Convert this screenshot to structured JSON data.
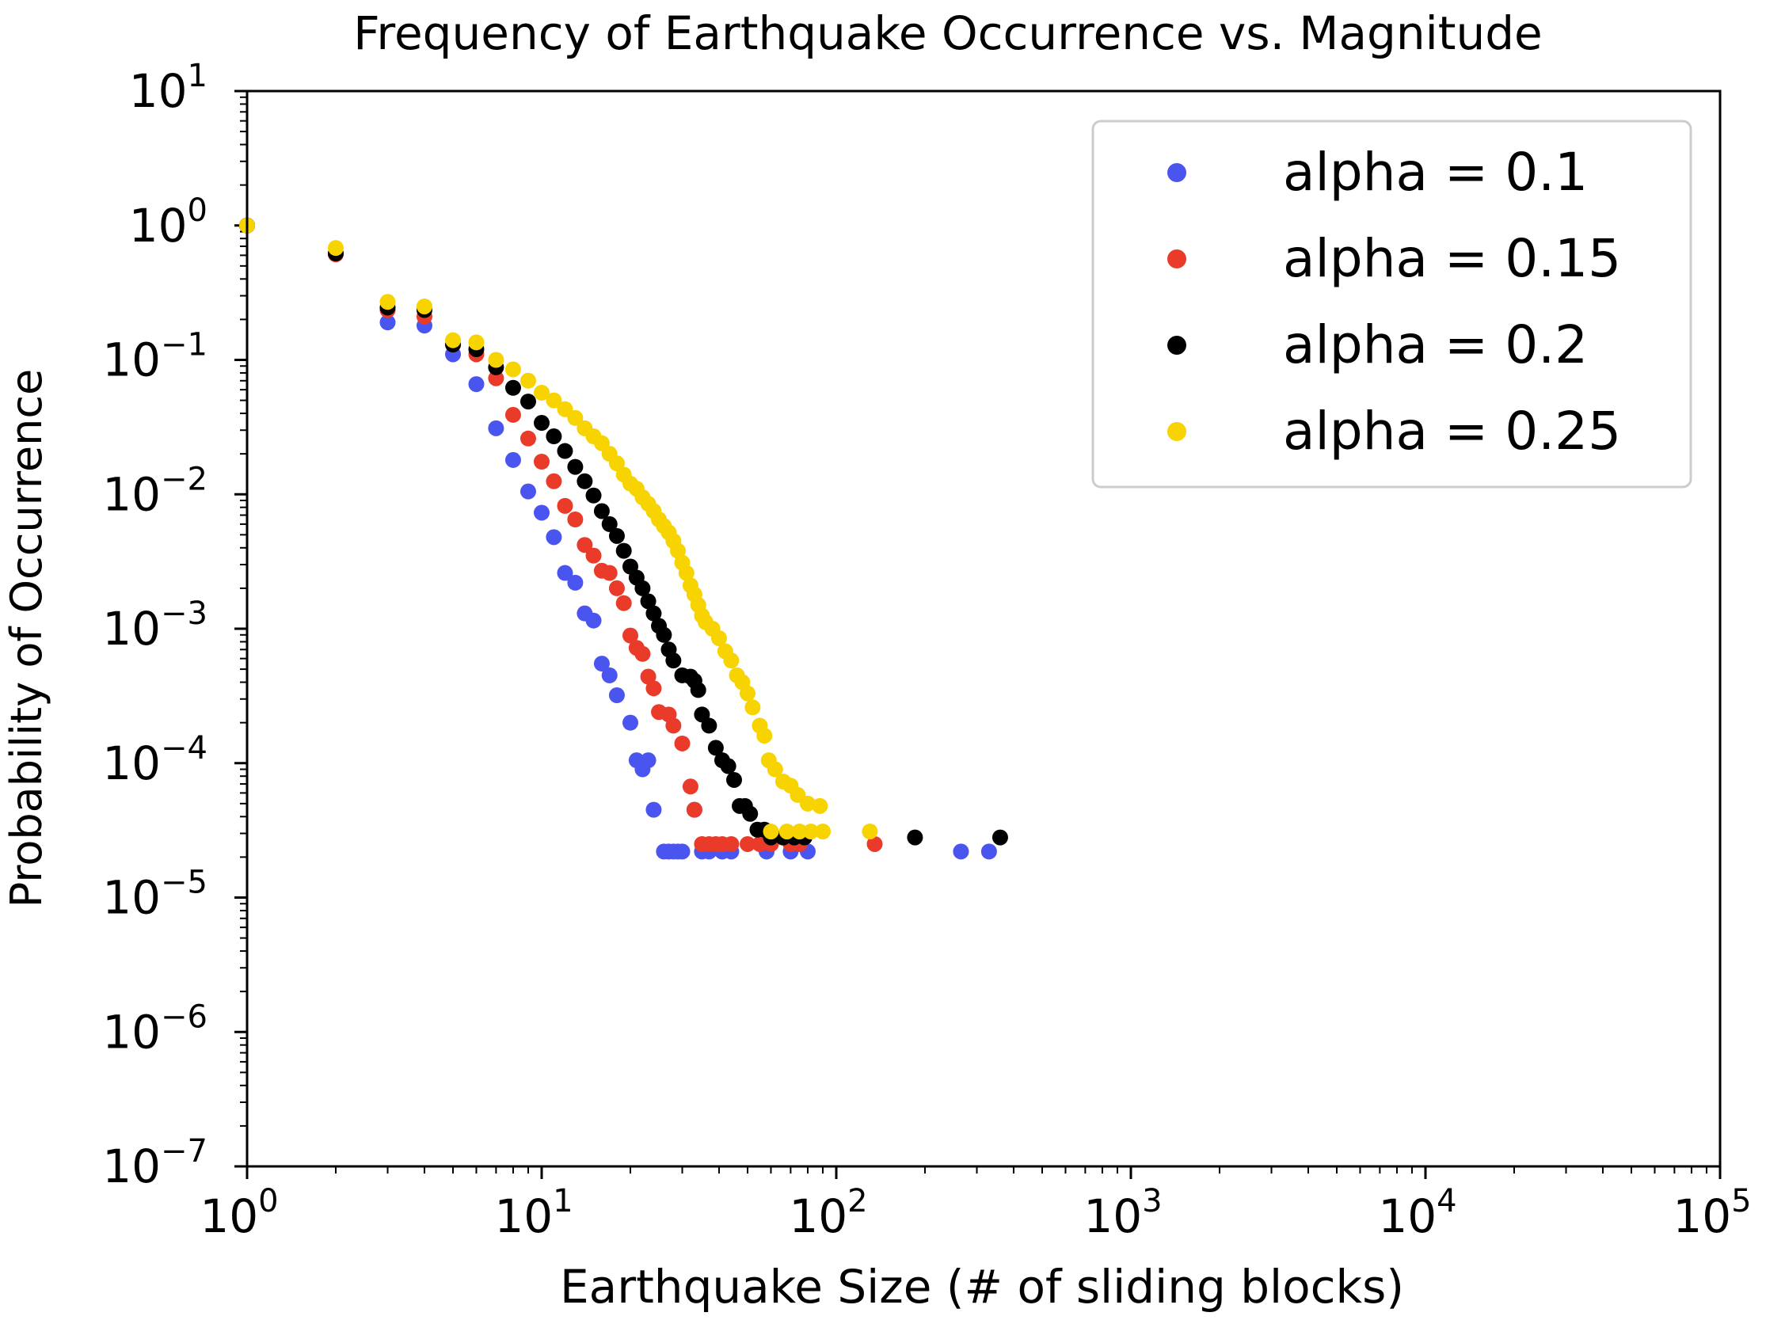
{
  "chart_data": {
    "type": "scatter",
    "title": "Frequency of Earthquake Occurrence vs. Magnitude",
    "xlabel": "Earthquake Size (# of sliding blocks)",
    "ylabel": "Probability of Occurrence",
    "xscale": "log",
    "yscale": "log",
    "xlim": [
      1,
      100000
    ],
    "ylim": [
      1e-07,
      10
    ],
    "grid": false,
    "legend_position": "top-right",
    "x_ticks": [
      {
        "value": 1,
        "base": "10",
        "exp": "0"
      },
      {
        "value": 10,
        "base": "10",
        "exp": "1"
      },
      {
        "value": 100,
        "base": "10",
        "exp": "2"
      },
      {
        "value": 1000,
        "base": "10",
        "exp": "3"
      },
      {
        "value": 10000,
        "base": "10",
        "exp": "4"
      },
      {
        "value": 100000,
        "base": "10",
        "exp": "5"
      }
    ],
    "y_ticks": [
      {
        "value": 10,
        "base": "10",
        "exp": "1"
      },
      {
        "value": 1,
        "base": "10",
        "exp": "0"
      },
      {
        "value": 0.1,
        "base": "10",
        "exp": "−1"
      },
      {
        "value": 0.01,
        "base": "10",
        "exp": "−2"
      },
      {
        "value": 0.001,
        "base": "10",
        "exp": "−3"
      },
      {
        "value": 0.0001,
        "base": "10",
        "exp": "−4"
      },
      {
        "value": 1e-05,
        "base": "10",
        "exp": "−5"
      },
      {
        "value": 1e-06,
        "base": "10",
        "exp": "−6"
      },
      {
        "value": 1e-07,
        "base": "10",
        "exp": "−7"
      }
    ],
    "series": [
      {
        "name": "alpha = 0.1",
        "color": "#4a55f0",
        "points": [
          [
            1,
            1.0
          ],
          [
            2,
            0.62
          ],
          [
            3,
            0.19
          ],
          [
            4,
            0.18
          ],
          [
            5,
            0.11
          ],
          [
            6,
            0.066
          ],
          [
            7,
            0.031
          ],
          [
            8,
            0.018
          ],
          [
            9,
            0.0105
          ],
          [
            10,
            0.0073
          ],
          [
            11,
            0.0048
          ],
          [
            12,
            0.0026
          ],
          [
            13,
            0.0022
          ],
          [
            14,
            0.0013
          ],
          [
            15,
            0.00115
          ],
          [
            16,
            0.00055
          ],
          [
            17,
            0.00045
          ],
          [
            18,
            0.00032
          ],
          [
            20,
            0.0002
          ],
          [
            21,
            0.000105
          ],
          [
            22,
            9e-05
          ],
          [
            23,
            0.000105
          ],
          [
            24,
            4.5e-05
          ],
          [
            26,
            2.2e-05
          ],
          [
            27,
            2.2e-05
          ],
          [
            28,
            2.2e-05
          ],
          [
            29,
            2.2e-05
          ],
          [
            30,
            2.2e-05
          ],
          [
            33,
            4.5e-05
          ],
          [
            35,
            2.2e-05
          ],
          [
            37,
            2.2e-05
          ],
          [
            41,
            2.2e-05
          ],
          [
            44,
            2.2e-05
          ],
          [
            58,
            2.2e-05
          ],
          [
            70,
            2.2e-05
          ],
          [
            80,
            2.2e-05
          ],
          [
            265,
            2.2e-05
          ],
          [
            330,
            2.2e-05
          ]
        ]
      },
      {
        "name": "alpha = 0.15",
        "color": "#ea3a2a",
        "points": [
          [
            1,
            1.0
          ],
          [
            2,
            0.61
          ],
          [
            3,
            0.235
          ],
          [
            4,
            0.21
          ],
          [
            5,
            0.13
          ],
          [
            6,
            0.11
          ],
          [
            7,
            0.073
          ],
          [
            8,
            0.039
          ],
          [
            9,
            0.026
          ],
          [
            10,
            0.0175
          ],
          [
            11,
            0.0125
          ],
          [
            12,
            0.0082
          ],
          [
            13,
            0.0065
          ],
          [
            14,
            0.0042
          ],
          [
            15,
            0.0035
          ],
          [
            16,
            0.0027
          ],
          [
            17,
            0.0026
          ],
          [
            18,
            0.002
          ],
          [
            19,
            0.00155
          ],
          [
            20,
            0.00089
          ],
          [
            21,
            0.00072
          ],
          [
            22,
            0.00065
          ],
          [
            23,
            0.00044
          ],
          [
            24,
            0.00036
          ],
          [
            25,
            0.00024
          ],
          [
            27,
            0.00023
          ],
          [
            28,
            0.00019
          ],
          [
            30,
            0.00014
          ],
          [
            32,
            6.7e-05
          ],
          [
            33,
            4.5e-05
          ],
          [
            35,
            2.5e-05
          ],
          [
            37,
            2.5e-05
          ],
          [
            39,
            2.5e-05
          ],
          [
            41,
            2.5e-05
          ],
          [
            44,
            2.5e-05
          ],
          [
            50,
            2.5e-05
          ],
          [
            55,
            2.5e-05
          ],
          [
            60,
            2.5e-05
          ],
          [
            70,
            2.5e-05
          ],
          [
            75,
            2.5e-05
          ],
          [
            135,
            2.5e-05
          ]
        ]
      },
      {
        "name": "alpha = 0.2",
        "color": "#000000",
        "points": [
          [
            1,
            1.0
          ],
          [
            2,
            0.62
          ],
          [
            3,
            0.245
          ],
          [
            4,
            0.235
          ],
          [
            5,
            0.13
          ],
          [
            6,
            0.12
          ],
          [
            7,
            0.088
          ],
          [
            8,
            0.062
          ],
          [
            9,
            0.049
          ],
          [
            10,
            0.034
          ],
          [
            11,
            0.027
          ],
          [
            12,
            0.021
          ],
          [
            13,
            0.016
          ],
          [
            14,
            0.0125
          ],
          [
            15,
            0.0098
          ],
          [
            16,
            0.0075
          ],
          [
            17,
            0.006
          ],
          [
            18,
            0.0049
          ],
          [
            19,
            0.0038
          ],
          [
            20,
            0.0029
          ],
          [
            21,
            0.0024
          ],
          [
            22,
            0.002
          ],
          [
            23,
            0.0016
          ],
          [
            24,
            0.0013
          ],
          [
            25,
            0.00105
          ],
          [
            26,
            0.0009
          ],
          [
            27,
            0.0007
          ],
          [
            28,
            0.00058
          ],
          [
            30,
            0.00045
          ],
          [
            32,
            0.00044
          ],
          [
            33,
            0.00041
          ],
          [
            34,
            0.00035
          ],
          [
            35,
            0.00023
          ],
          [
            37,
            0.00019
          ],
          [
            39,
            0.00013
          ],
          [
            41,
            0.000105
          ],
          [
            43,
            9.5e-05
          ],
          [
            45,
            7.5e-05
          ],
          [
            47,
            4.8e-05
          ],
          [
            49,
            4.8e-05
          ],
          [
            51,
            4.2e-05
          ],
          [
            54,
            3.2e-05
          ],
          [
            57,
            3.2e-05
          ],
          [
            60,
            2.8e-05
          ],
          [
            66,
            2.8e-05
          ],
          [
            72,
            2.8e-05
          ],
          [
            78,
            2.8e-05
          ],
          [
            185,
            2.8e-05
          ],
          [
            360,
            2.8e-05
          ]
        ]
      },
      {
        "name": "alpha = 0.25",
        "color": "#f7d300",
        "points": [
          [
            1,
            1.0
          ],
          [
            2,
            0.68
          ],
          [
            3,
            0.27
          ],
          [
            4,
            0.25
          ],
          [
            5,
            0.14
          ],
          [
            6,
            0.135
          ],
          [
            7,
            0.1
          ],
          [
            8,
            0.085
          ],
          [
            9,
            0.07
          ],
          [
            10,
            0.057
          ],
          [
            11,
            0.05
          ],
          [
            12,
            0.043
          ],
          [
            13,
            0.037
          ],
          [
            14,
            0.031
          ],
          [
            15,
            0.027
          ],
          [
            16,
            0.024
          ],
          [
            17,
            0.02
          ],
          [
            18,
            0.017
          ],
          [
            19,
            0.014
          ],
          [
            20,
            0.012
          ],
          [
            21,
            0.011
          ],
          [
            22,
            0.0095
          ],
          [
            23,
            0.0085
          ],
          [
            24,
            0.0075
          ],
          [
            25,
            0.0065
          ],
          [
            26,
            0.0058
          ],
          [
            27,
            0.0052
          ],
          [
            28,
            0.0045
          ],
          [
            29,
            0.0038
          ],
          [
            30,
            0.0031
          ],
          [
            31,
            0.0026
          ],
          [
            32,
            0.0021
          ],
          [
            33,
            0.0018
          ],
          [
            34,
            0.0015
          ],
          [
            35,
            0.00125
          ],
          [
            36,
            0.00112
          ],
          [
            38,
            0.001
          ],
          [
            40,
            0.00085
          ],
          [
            42,
            0.00068
          ],
          [
            44,
            0.00058
          ],
          [
            46,
            0.00045
          ],
          [
            48,
            0.0004
          ],
          [
            50,
            0.00033
          ],
          [
            52,
            0.00026
          ],
          [
            55,
            0.00019
          ],
          [
            57,
            0.00016
          ],
          [
            59,
            0.000105
          ],
          [
            62,
            9e-05
          ],
          [
            66,
            7.3e-05
          ],
          [
            70,
            6.8e-05
          ],
          [
            74,
            5.8e-05
          ],
          [
            80,
            5e-05
          ],
          [
            88,
            4.8e-05
          ],
          [
            60,
            3.1e-05
          ],
          [
            68,
            3.1e-05
          ],
          [
            75,
            3.1e-05
          ],
          [
            82,
            3.1e-05
          ],
          [
            90,
            3.1e-05
          ],
          [
            130,
            3.1e-05
          ]
        ]
      }
    ]
  }
}
